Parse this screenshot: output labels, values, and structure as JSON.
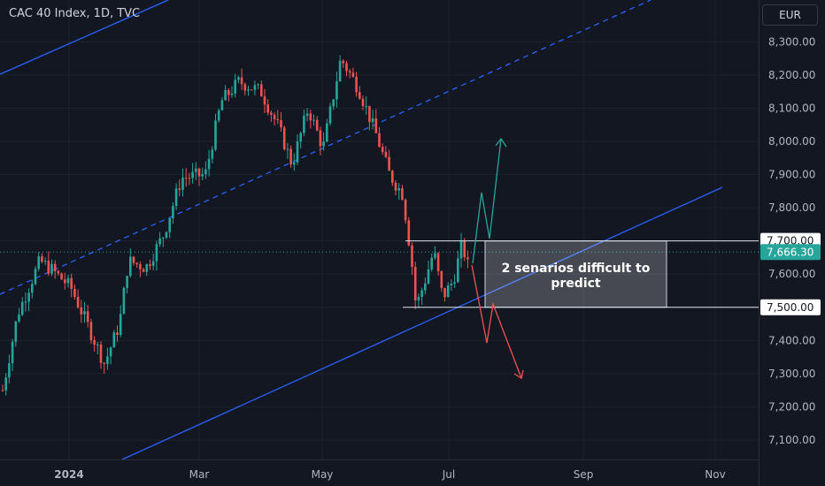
{
  "header": {
    "title": "CAC 40 Index, 1D, TVC"
  },
  "currency_button": {
    "label": "EUR"
  },
  "annotation": {
    "text": "2 senarios difficult to predict"
  },
  "colors": {
    "background": "#131722",
    "grid": "#1e222d",
    "up_candle": "#26a69a",
    "down_candle": "#ef5350",
    "channel_line": "#2962ff",
    "price_tag": "#26a69a",
    "bull_arrow": "#26a69a",
    "bear_arrow": "#ef5350"
  },
  "chart_data": {
    "type": "candlestick",
    "title": "CAC 40 Index, 1D, TVC",
    "xlabel": "",
    "ylabel": "",
    "ylim": [
      7052,
      8395
    ],
    "y_ticks": [
      "8,300.00",
      "8,200.00",
      "8,100.00",
      "8,000.00",
      "7,900.00",
      "7,800.00",
      "7,700.00",
      "7,600.00",
      "7,500.00",
      "7,400.00",
      "7,300.00",
      "7,200.00",
      "7,100.00"
    ],
    "x_ticks": [
      "2024",
      "Mar",
      "May",
      "Jul",
      "Sep",
      "Nov"
    ],
    "price_labels": [
      "7,700.00",
      "7,666.30",
      "7,500.00"
    ],
    "current_price": 7666.3,
    "range_box": {
      "top": 7700,
      "bottom": 7500
    },
    "grid": true
  }
}
